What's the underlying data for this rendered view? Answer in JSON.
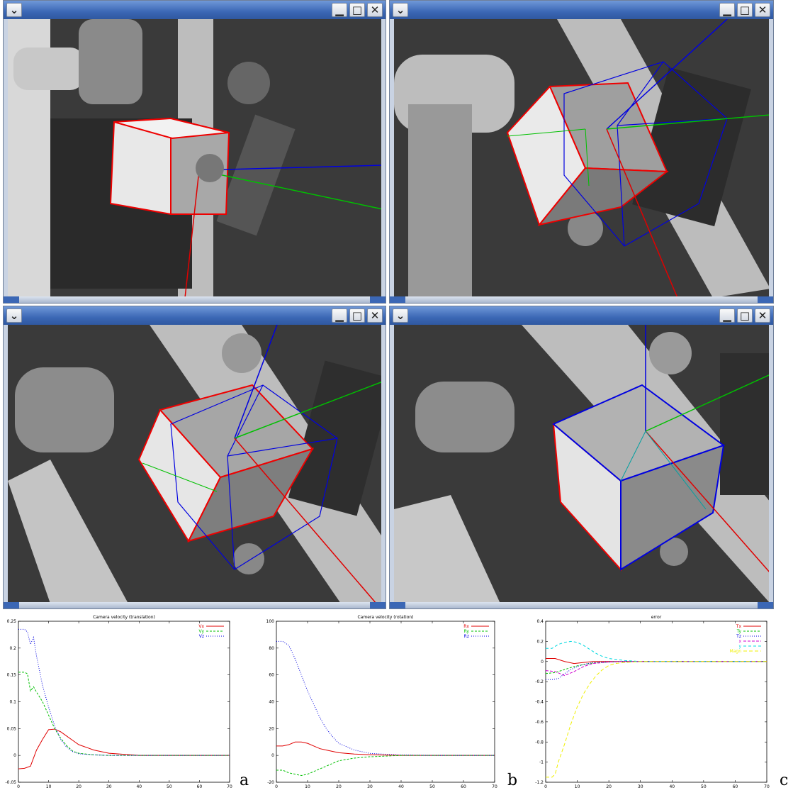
{
  "windows": [
    {
      "name": "window-view-1",
      "buttons": {
        "menu": "⌄",
        "min": "▁",
        "max": "□",
        "close": "✕"
      }
    },
    {
      "name": "window-view-2",
      "buttons": {
        "menu": "⌄",
        "min": "▁",
        "max": "□",
        "close": "✕"
      }
    },
    {
      "name": "window-view-3",
      "buttons": {
        "menu": "⌄",
        "min": "▁",
        "max": "□",
        "close": "✕"
      }
    },
    {
      "name": "window-view-4",
      "buttons": {
        "menu": "⌄",
        "min": "▁",
        "max": "□",
        "close": "✕"
      }
    }
  ],
  "panel_labels": [
    "a",
    "b",
    "c"
  ],
  "chart_data": [
    {
      "type": "line",
      "title": "Camera velocity (translation)",
      "xlim": [
        0,
        70
      ],
      "ylim": [
        -0.05,
        0.25
      ],
      "xticks": [
        0,
        10,
        20,
        30,
        40,
        50,
        60,
        70
      ],
      "yticks": [
        -0.05,
        0,
        0.05,
        0.1,
        0.15,
        0.2,
        0.25
      ],
      "ytick_labels": [
        "-0.05",
        "0",
        "0.05",
        "0.1",
        "0.15",
        "0.2",
        "0.25"
      ],
      "legend": "top-right",
      "series": [
        {
          "name": "Vx",
          "color": "#e00000",
          "dash": "",
          "x": [
            0,
            2,
            4,
            6,
            8,
            10,
            12,
            14,
            16,
            18,
            20,
            25,
            30,
            35,
            40,
            50,
            60,
            70
          ],
          "y": [
            -0.025,
            -0.024,
            -0.02,
            0.01,
            0.03,
            0.048,
            0.049,
            0.044,
            0.036,
            0.028,
            0.02,
            0.01,
            0.004,
            0.002,
            0.0,
            0.0,
            0.0,
            0.0
          ]
        },
        {
          "name": "Vy",
          "color": "#00c000",
          "dash": "3,2",
          "x": [
            0,
            2,
            3,
            4,
            5,
            6,
            8,
            10,
            12,
            14,
            16,
            18,
            20,
            25,
            30,
            40,
            50,
            60,
            70
          ],
          "y": [
            0.155,
            0.155,
            0.152,
            0.12,
            0.128,
            0.118,
            0.1,
            0.075,
            0.05,
            0.032,
            0.018,
            0.008,
            0.004,
            0.001,
            0.0,
            0.0,
            0.0,
            0.0,
            0.0
          ]
        },
        {
          "name": "Vz",
          "color": "#0000e0",
          "dash": "1,2",
          "x": [
            0,
            2,
            3,
            4,
            5,
            6,
            8,
            10,
            12,
            14,
            16,
            18,
            20,
            25,
            30,
            40,
            50,
            60,
            70
          ],
          "y": [
            0.235,
            0.235,
            0.23,
            0.207,
            0.22,
            0.185,
            0.13,
            0.09,
            0.055,
            0.03,
            0.015,
            0.007,
            0.003,
            0.001,
            0.0,
            0.0,
            0.0,
            0.0,
            0.0
          ]
        }
      ]
    },
    {
      "type": "line",
      "title": "Camera velocity (rotation)",
      "xlim": [
        0,
        70
      ],
      "ylim": [
        -20,
        100
      ],
      "xticks": [
        0,
        10,
        20,
        30,
        40,
        50,
        60,
        70
      ],
      "yticks": [
        -20,
        0,
        20,
        40,
        60,
        80,
        100
      ],
      "ytick_labels": [
        "-20",
        "0",
        "20",
        "40",
        "60",
        "80",
        "100"
      ],
      "legend": "top-right",
      "series": [
        {
          "name": "Rx",
          "color": "#e00000",
          "dash": "",
          "x": [
            0,
            2,
            4,
            6,
            8,
            10,
            12,
            14,
            16,
            20,
            25,
            30,
            40,
            50,
            60,
            70
          ],
          "y": [
            7,
            7,
            8,
            10,
            10,
            9,
            7,
            5,
            4,
            2,
            1,
            0.5,
            0,
            0,
            0,
            0
          ]
        },
        {
          "name": "Ry",
          "color": "#00c000",
          "dash": "3,2",
          "x": [
            0,
            2,
            4,
            6,
            8,
            10,
            12,
            14,
            16,
            18,
            20,
            25,
            30,
            40,
            50,
            60,
            70
          ],
          "y": [
            -11,
            -11,
            -13,
            -14,
            -15,
            -14,
            -12,
            -10,
            -8,
            -6,
            -4,
            -2,
            -1,
            0,
            0,
            0,
            0
          ]
        },
        {
          "name": "Rz",
          "color": "#0000e0",
          "dash": "1,2",
          "x": [
            0,
            2,
            4,
            6,
            8,
            10,
            12,
            14,
            16,
            18,
            20,
            25,
            30,
            40,
            50,
            60,
            70
          ],
          "y": [
            85,
            85,
            82,
            72,
            60,
            48,
            38,
            28,
            20,
            14,
            9,
            4,
            1.5,
            0.3,
            0,
            0,
            0
          ]
        }
      ]
    },
    {
      "type": "line",
      "title": "error",
      "xlim": [
        0,
        70
      ],
      "ylim": [
        -1.2,
        0.4
      ],
      "xticks": [
        0,
        10,
        20,
        30,
        40,
        50,
        60,
        70
      ],
      "yticks": [
        -1.2,
        -1,
        -0.8,
        -0.6,
        -0.4,
        -0.2,
        0,
        0.2,
        0.4
      ],
      "ytick_labels": [
        "-1.2",
        "-1",
        "-0.8",
        "-0.6",
        "-0.4",
        "-0.2",
        "0",
        "0.2",
        "0.4"
      ],
      "legend": "top-right",
      "series": [
        {
          "name": "Tx",
          "color": "#e00000",
          "dash": "",
          "x": [
            0,
            3,
            6,
            9,
            12,
            15,
            20,
            30,
            40,
            50,
            60,
            70
          ],
          "y": [
            0.03,
            0.03,
            0.0,
            -0.02,
            -0.01,
            0.0,
            0.0,
            0.0,
            0.0,
            0.0,
            0.0,
            0.0
          ]
        },
        {
          "name": "Ty",
          "color": "#00c000",
          "dash": "3,2",
          "x": [
            0,
            3,
            6,
            9,
            12,
            15,
            20,
            25,
            30,
            40,
            50,
            60,
            70
          ],
          "y": [
            -0.12,
            -0.11,
            -0.08,
            -0.05,
            -0.03,
            -0.015,
            -0.005,
            0.0,
            0.0,
            0.0,
            0.0,
            0.0,
            0.0
          ]
        },
        {
          "name": "Tz",
          "color": "#0000e0",
          "dash": "1,2",
          "x": [
            0,
            2,
            4,
            6,
            8,
            10,
            12,
            15,
            20,
            25,
            30,
            40,
            50,
            60,
            70
          ],
          "y": [
            -0.18,
            -0.18,
            -0.17,
            -0.12,
            -0.08,
            -0.05,
            -0.03,
            -0.01,
            -0.003,
            0.0,
            0.0,
            0.0,
            0.0,
            0.0,
            0.0
          ]
        },
        {
          "name": "x",
          "color": "#d000d0",
          "dash": "4,2",
          "x": [
            0,
            3,
            6,
            9,
            12,
            15,
            20,
            25,
            30,
            40,
            50,
            60,
            70
          ],
          "y": [
            -0.09,
            -0.1,
            -0.14,
            -0.1,
            -0.05,
            -0.02,
            -0.005,
            0.0,
            0.0,
            0.0,
            0.0,
            0.0,
            0.0
          ]
        },
        {
          "name": "y",
          "color": "#00d8e0",
          "dash": "4,3",
          "x": [
            0,
            2,
            4,
            6,
            8,
            10,
            12,
            14,
            16,
            18,
            20,
            25,
            30,
            40,
            50,
            60,
            70
          ],
          "y": [
            0.13,
            0.13,
            0.17,
            0.19,
            0.2,
            0.19,
            0.16,
            0.12,
            0.08,
            0.05,
            0.03,
            0.01,
            0.0,
            0.0,
            0.0,
            0.0,
            0.0
          ]
        },
        {
          "name": "Magn",
          "color": "#f0f000",
          "dash": "5,3",
          "x": [
            0,
            2,
            3,
            4,
            6,
            8,
            10,
            12,
            14,
            16,
            18,
            20,
            22,
            25,
            30,
            40,
            50,
            60,
            70
          ],
          "y": [
            -1.15,
            -1.15,
            -1.12,
            -1.0,
            -0.82,
            -0.62,
            -0.45,
            -0.32,
            -0.22,
            -0.14,
            -0.08,
            -0.04,
            -0.02,
            -0.01,
            0.0,
            0.0,
            0.0,
            0.0,
            0.0
          ]
        }
      ]
    }
  ]
}
